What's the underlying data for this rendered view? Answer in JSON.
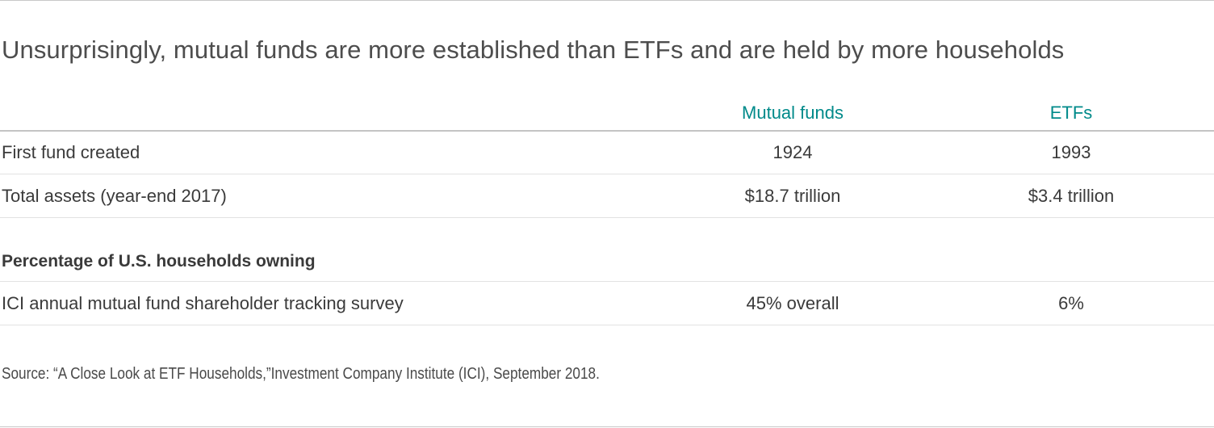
{
  "title": "Unsurprisingly, mutual funds are more established than ETFs and are held by more households",
  "table": {
    "columns": [
      "Mutual funds",
      "ETFs"
    ],
    "rows": [
      {
        "label": "First fund created",
        "mutual_funds": "1924",
        "etfs": "1993"
      },
      {
        "label": "Total assets (year-end 2017)",
        "mutual_funds": "$18.7 trillion",
        "etfs": "$3.4 trillion"
      }
    ],
    "section_heading": "Percentage of U.S. households owning",
    "section_rows": [
      {
        "label": "ICI annual mutual fund shareholder tracking survey",
        "mutual_funds": "45% overall",
        "etfs": "6%"
      }
    ]
  },
  "source": "Source: “A Close Look at ETF Households,”Investment Company Institute (ICI), September 2018.",
  "colors": {
    "header_accent": "#008a8a",
    "text": "#3a3a3a",
    "rule": "#c8c8c8"
  }
}
